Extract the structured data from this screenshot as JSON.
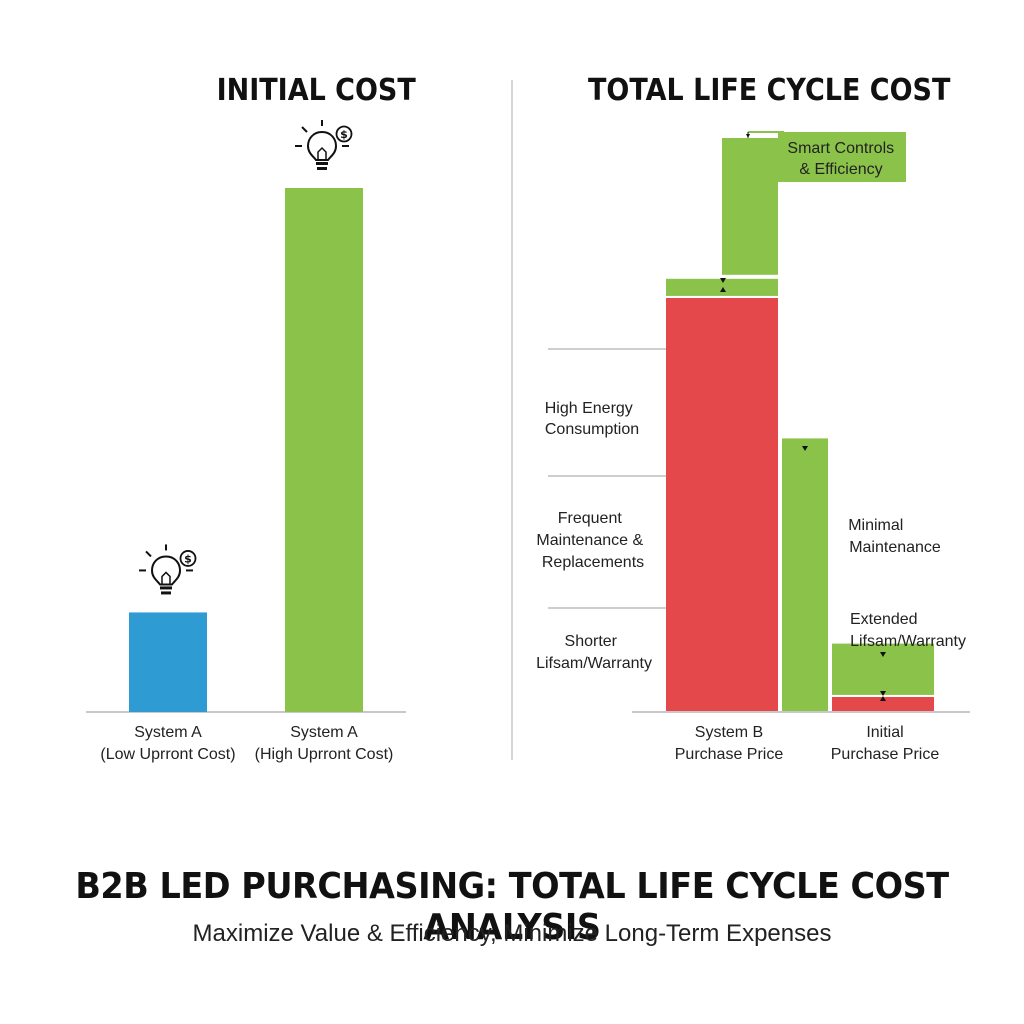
{
  "colors": {
    "blue": "#2e9bd2",
    "green": "#8bc34a",
    "red": "#e5484a",
    "axis": "#c8c8c8",
    "divider": "#d6d6d6"
  },
  "icons": [
    "lightbulb-dollar-icon"
  ],
  "chart_data": [
    {
      "type": "bar",
      "title": "INITIAL COST",
      "ylim": [
        0,
        100
      ],
      "categories": [
        [
          "System A",
          "(Low Uprront Cost)"
        ],
        [
          "System A",
          "(High Uprront Cost)"
        ]
      ],
      "values": [
        19,
        100
      ],
      "bar_colors": [
        "#2e9bd2",
        "#8bc34a"
      ],
      "icon": "lightbulb-dollar-icon",
      "grid": false
    },
    {
      "type": "bar",
      "stacked": true,
      "title": "TOTAL LIFE CYCLE COST",
      "ylim": [
        0,
        100
      ],
      "categories": [
        [
          "System B",
          "Purchase Price"
        ],
        [
          "",
          ""
        ],
        [
          "Initial",
          "Purchase Price"
        ]
      ],
      "series": [
        {
          "color": "#e5484a",
          "values": [
            73,
            0,
            3
          ]
        },
        {
          "color": "#8bc34a",
          "values": [
            3,
            48,
            9
          ]
        },
        {
          "color": "#8bc34a",
          "values": [
            24,
            0,
            0
          ]
        }
      ],
      "annotations": [
        [
          "Smart Controls",
          "& Efficiency"
        ],
        [
          "High Energy",
          "Consumption"
        ],
        [
          "Frequent",
          "Maintenance &",
          "Replacements"
        ],
        [
          "Shorter",
          "Lifsam/Warranty"
        ],
        [
          "Minimal",
          "Maintenance"
        ],
        [
          "Extended",
          "Lifsam/Warranty"
        ]
      ],
      "grid": false
    }
  ],
  "footer": {
    "title": "B2B LED PURCHASING: TOTAL LIFE CYCLE COST ANALYSIS",
    "subtitle": "Maximize Value & Efficiency, Minimize Long-Term Expenses"
  }
}
